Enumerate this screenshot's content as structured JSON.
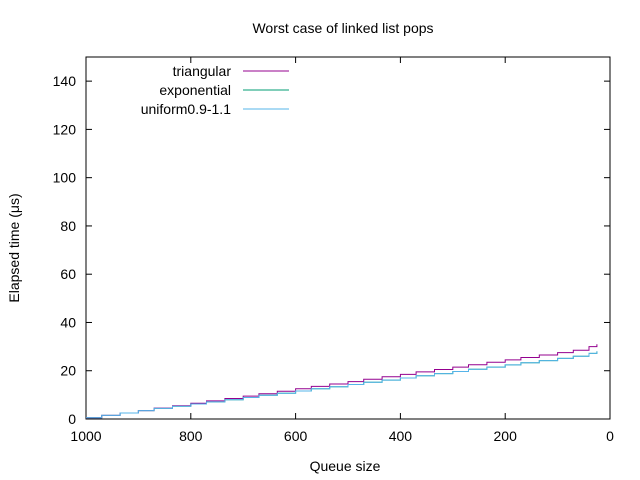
{
  "chart_data": {
    "type": "line",
    "title": "Worst case of linked list pops",
    "xlabel": "Queue size",
    "ylabel": "Elapsed time (μs)",
    "xlim": [
      1000,
      0
    ],
    "ylim": [
      0,
      150
    ],
    "x_reversed": true,
    "xticks": [
      1000,
      800,
      600,
      400,
      200,
      0
    ],
    "yticks": [
      0,
      20,
      40,
      60,
      80,
      100,
      120,
      140
    ],
    "grid": false,
    "legend_position": "top-left",
    "step": true,
    "series": [
      {
        "name": "triangular",
        "color": "#94008f",
        "x": [
          1000,
          970,
          935,
          900,
          870,
          835,
          800,
          770,
          735,
          700,
          670,
          635,
          600,
          570,
          535,
          500,
          470,
          435,
          400,
          370,
          335,
          300,
          270,
          235,
          200,
          170,
          135,
          100,
          70,
          40,
          25
        ],
        "values": [
          0.5,
          1.5,
          2.5,
          3.5,
          4.5,
          5.5,
          6.5,
          7.5,
          8.5,
          9.5,
          10.5,
          11.5,
          12.5,
          13.5,
          14.5,
          15.5,
          16.5,
          17.5,
          18.5,
          19.5,
          20.5,
          21.5,
          22.5,
          23.5,
          24.5,
          25.5,
          26.5,
          27.5,
          28.5,
          30.0,
          31.0
        ]
      },
      {
        "name": "exponential",
        "color": "#009e73",
        "x": [
          1000,
          970,
          935,
          900,
          870,
          835,
          800,
          770,
          735,
          700,
          670,
          635,
          600,
          570,
          535,
          500,
          470,
          435,
          400,
          370,
          335,
          300,
          270,
          235,
          200,
          170,
          135,
          100,
          70,
          40,
          25
        ],
        "values": [
          0.5,
          1.5,
          2.5,
          3.5,
          4.4,
          5.3,
          6.2,
          7.1,
          8.0,
          8.9,
          9.8,
          10.7,
          11.6,
          12.5,
          13.4,
          14.3,
          15.2,
          16.1,
          17.0,
          17.9,
          18.8,
          19.7,
          20.6,
          21.5,
          22.4,
          23.3,
          24.2,
          25.1,
          26.0,
          27.2,
          28.0
        ]
      },
      {
        "name": "uniform0.9-1.1",
        "color": "#56b4e9",
        "x": [
          1000,
          970,
          935,
          900,
          870,
          835,
          800,
          770,
          735,
          700,
          670,
          635,
          600,
          570,
          535,
          500,
          470,
          435,
          400,
          370,
          335,
          300,
          270,
          235,
          200,
          170,
          135,
          100,
          70,
          40,
          25
        ],
        "values": [
          0.5,
          1.5,
          2.5,
          3.5,
          4.4,
          5.3,
          6.2,
          7.1,
          8.0,
          8.9,
          9.8,
          10.7,
          11.6,
          12.5,
          13.4,
          14.3,
          15.2,
          16.1,
          17.0,
          17.9,
          18.8,
          19.7,
          20.6,
          21.5,
          22.4,
          23.3,
          24.2,
          25.1,
          26.0,
          27.2,
          28.0
        ]
      }
    ]
  }
}
